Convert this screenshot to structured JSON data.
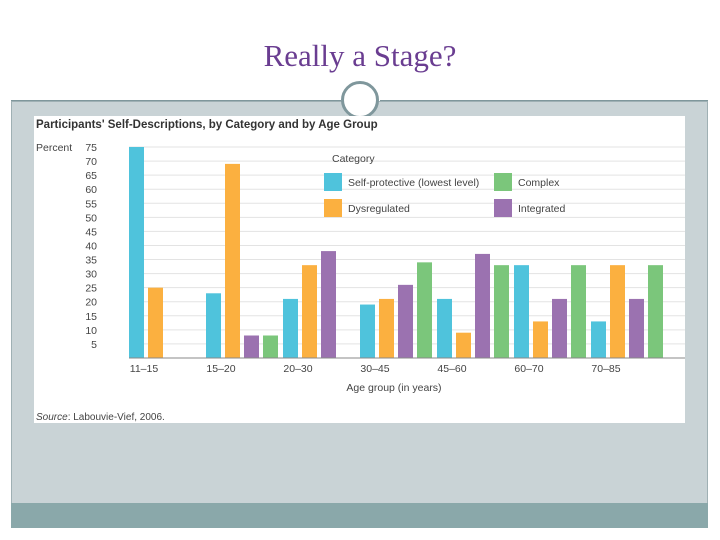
{
  "slide": {
    "title": "Really a Stage?"
  },
  "colors": {
    "title": "#6a3d91",
    "self_protective": "#4fc3dc",
    "dysregulated": "#fbb040",
    "complex": "#7bc67b",
    "integrated": "#9b72b0",
    "grid": "#e3e3e3"
  },
  "chart_data": {
    "type": "bar",
    "title": "Participants' Self-Descriptions, by Category and by Age Group",
    "ylabel": "Percent",
    "xlabel": "Age group (in years)",
    "ylim": [
      0,
      75
    ],
    "yticks": [
      5,
      10,
      15,
      20,
      25,
      30,
      35,
      40,
      45,
      50,
      55,
      60,
      65,
      70,
      75
    ],
    "categories": [
      "11–15",
      "15–20",
      "20–30",
      "30–45",
      "45–60",
      "60–70",
      "70–85"
    ],
    "legend_title": "Category",
    "legend_position": "top-right",
    "series": [
      {
        "name": "Self-protective (lowest level)",
        "color_key": "self_protective",
        "values": [
          75,
          23,
          21,
          19,
          21,
          33,
          13
        ]
      },
      {
        "name": "Dysregulated",
        "color_key": "dysregulated",
        "values": [
          25,
          69,
          33,
          21,
          9,
          13,
          33
        ]
      },
      {
        "name": "Integrated",
        "color_key": "integrated",
        "values": [
          0,
          8,
          38,
          26,
          37,
          21,
          21
        ]
      },
      {
        "name": "Complex",
        "color_key": "complex",
        "values": [
          0,
          8,
          0,
          34,
          33,
          33,
          33
        ]
      }
    ],
    "source_label": "Source",
    "source_text": ": Labouvie-Vief, 2006."
  }
}
